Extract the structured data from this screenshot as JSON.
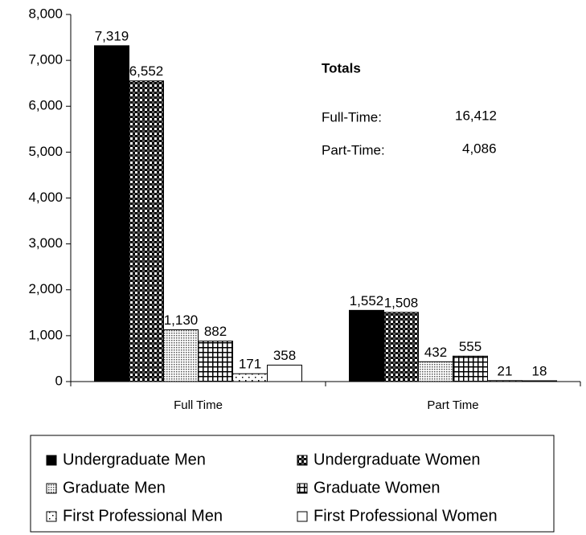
{
  "chart_data": {
    "type": "bar",
    "categories": [
      "Full Time",
      "Part Time"
    ],
    "series": [
      {
        "name": "Undergraduate Men",
        "color": "#000000",
        "pattern": "solid",
        "values": [
          7319,
          1552
        ],
        "value_labels": [
          "7,319",
          "1,552"
        ]
      },
      {
        "name": "Undergraduate Women",
        "color": "#000000",
        "pattern": "checker",
        "values": [
          6552,
          1508
        ],
        "value_labels": [
          "6,552",
          "1,508"
        ]
      },
      {
        "name": "Graduate Men",
        "color": "#000000",
        "pattern": "dots",
        "values": [
          1130,
          432
        ],
        "value_labels": [
          "1,130",
          "432"
        ]
      },
      {
        "name": "Graduate Women",
        "color": "#000000",
        "pattern": "grid",
        "values": [
          882,
          555
        ],
        "value_labels": [
          "882",
          "555"
        ]
      },
      {
        "name": "First Professional Men",
        "color": "#000000",
        "pattern": "sparse-dots",
        "values": [
          171,
          21
        ]
      },
      {
        "name": "First Professional Women",
        "color": "#000000",
        "pattern": "none",
        "values": [
          358,
          18
        ]
      }
    ],
    "ylim": [
      0,
      8000
    ],
    "yticks": [
      0,
      {
        "value": 1000,
        "label": "1,000"
      },
      {
        "value": 2000,
        "label": "2,000"
      },
      {
        "value": 3000,
        "label": "3,000"
      },
      {
        "value": 4000,
        "label": "4,000"
      },
      {
        "value": 5000,
        "label": "5,000"
      },
      {
        "value": 6000,
        "label": "6,000"
      },
      {
        "value": 7000,
        "label": "7,000"
      },
      {
        "value": 8000,
        "label": "8,000"
      }
    ],
    "grid": false,
    "legend": "bottom",
    "annotations": {
      "title": "Totals",
      "rows": [
        {
          "label": "Full-Time:",
          "value": "16,412"
        },
        {
          "label": "Part-Time:",
          "value": "4,086"
        }
      ]
    }
  }
}
